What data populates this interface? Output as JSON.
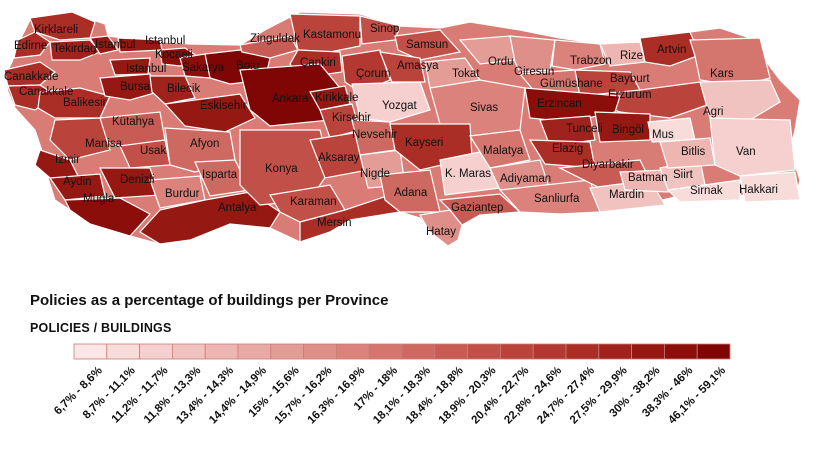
{
  "map": {
    "title": "Policies as a percentage of buildings per Province",
    "legend_title": "POLICIES / BUILDINGS",
    "legend": {
      "classes": [
        {
          "label": "6,7% - 8,6%",
          "color": "#fbe7e6"
        },
        {
          "label": "8,7% - 11,1%",
          "color": "#f8dcda"
        },
        {
          "label": "11,2% - 11,7%",
          "color": "#f5d0ce"
        },
        {
          "label": "11,8% - 13,3%",
          "color": "#f1c3c0"
        },
        {
          "label": "13,4% - 14,3%",
          "color": "#edb6b2"
        },
        {
          "label": "14,4% - 14,9%",
          "color": "#e9a9a4"
        },
        {
          "label": "15% - 15,6%",
          "color": "#e49c96"
        },
        {
          "label": "15,7% - 16,2%",
          "color": "#df8f89"
        },
        {
          "label": "16,3% - 16,9%",
          "color": "#da827b"
        },
        {
          "label": "17% - 18%",
          "color": "#d4756e"
        },
        {
          "label": "18,1% - 18,3%",
          "color": "#ce6961"
        },
        {
          "label": "18,4% - 18,8%",
          "color": "#c85c54"
        },
        {
          "label": "18,9% - 20,3%",
          "color": "#c15048"
        },
        {
          "label": "20,4% - 22,7%",
          "color": "#ba443c"
        },
        {
          "label": "22,8% - 24,6%",
          "color": "#b33831"
        },
        {
          "label": "24,7% - 27,4%",
          "color": "#aa2d26"
        },
        {
          "label": "27,5% - 29,9%",
          "color": "#a0221c"
        },
        {
          "label": "30% - 38,2%",
          "color": "#961813"
        },
        {
          "label": "38,3% - 46%",
          "color": "#8b0e0b"
        },
        {
          "label": "46,1% - 59,1%",
          "color": "#7f0605"
        }
      ]
    },
    "provinces": [
      {
        "name": "Kirklareli",
        "class": 15
      },
      {
        "name": "Edirne",
        "class": 15
      },
      {
        "name": "Tekirdag",
        "class": 16
      },
      {
        "name": "Istanbul",
        "class": 17
      },
      {
        "name": "Istanbul",
        "class": 17
      },
      {
        "name": "Istanbul",
        "class": 17
      },
      {
        "name": "Kocaeli",
        "class": 18
      },
      {
        "name": "Canakkale",
        "class": 15
      },
      {
        "name": "Canakkale",
        "class": 15
      },
      {
        "name": "Balikesir",
        "class": 15
      },
      {
        "name": "Bursa",
        "class": 17
      },
      {
        "name": "Sakarya",
        "class": 18
      },
      {
        "name": "Bilecik",
        "class": 16
      },
      {
        "name": "Bolu",
        "class": 19
      },
      {
        "name": "Zinguldak",
        "class": 11
      },
      {
        "name": "Kastamonu",
        "class": 13
      },
      {
        "name": "Sinop",
        "class": 12
      },
      {
        "name": "Çankiri",
        "class": 15
      },
      {
        "name": "Samsun",
        "class": 12
      },
      {
        "name": "Çorum",
        "class": 14
      },
      {
        "name": "Amasya",
        "class": 13
      },
      {
        "name": "Tokat",
        "class": 6
      },
      {
        "name": "Ordu",
        "class": 6
      },
      {
        "name": "Giresun",
        "class": 7
      },
      {
        "name": "Trabzon",
        "class": 8
      },
      {
        "name": "Rize",
        "class": 4
      },
      {
        "name": "Artvin",
        "class": 15
      },
      {
        "name": "Gümüshane",
        "class": 9
      },
      {
        "name": "Bayburt",
        "class": 13
      },
      {
        "name": "Kars",
        "class": 9
      },
      {
        "name": "Erzurum",
        "class": 13
      },
      {
        "name": "Agri",
        "class": 3
      },
      {
        "name": "Eskisehir",
        "class": 17
      },
      {
        "name": "Ankara",
        "class": 19
      },
      {
        "name": "Kirikkale",
        "class": 17
      },
      {
        "name": "Kirsehir",
        "class": 13
      },
      {
        "name": "Yozgat",
        "class": 2
      },
      {
        "name": "Sivas",
        "class": 8
      },
      {
        "name": "Erzincan",
        "class": 18
      },
      {
        "name": "Tunceli",
        "class": 16
      },
      {
        "name": "Bingöl",
        "class": 17
      },
      {
        "name": "Mus",
        "class": 1
      },
      {
        "name": "Kütahya",
        "class": 11
      },
      {
        "name": "Manisa",
        "class": 13
      },
      {
        "name": "Usak",
        "class": 12
      },
      {
        "name": "Afyon",
        "class": 10
      },
      {
        "name": "Izmir",
        "class": 17
      },
      {
        "name": "Aydin",
        "class": 17
      },
      {
        "name": "Denizli",
        "class": 17
      },
      {
        "name": "Mugla",
        "class": 18
      },
      {
        "name": "Burdur",
        "class": 8
      },
      {
        "name": "Isparta",
        "class": 10
      },
      {
        "name": "Antalya",
        "class": 17
      },
      {
        "name": "Konya",
        "class": 12
      },
      {
        "name": "Aksaray",
        "class": 13
      },
      {
        "name": "Nevsehir",
        "class": 10
      },
      {
        "name": "Nigde",
        "class": 6
      },
      {
        "name": "Kayseri",
        "class": 15
      },
      {
        "name": "Karaman",
        "class": 12
      },
      {
        "name": "Mersin",
        "class": 15
      },
      {
        "name": "Adana",
        "class": 10
      },
      {
        "name": "Hatay",
        "class": 7
      },
      {
        "name": "Gaziantep",
        "class": 11
      },
      {
        "name": "K. Maras",
        "class": 2
      },
      {
        "name": "Malatya",
        "class": 9
      },
      {
        "name": "Adiyaman",
        "class": 7
      },
      {
        "name": "Sanliurfa",
        "class": 8
      },
      {
        "name": "Elazig",
        "class": 15
      },
      {
        "name": "Diyarbakir",
        "class": 11
      },
      {
        "name": "Mardin",
        "class": 3
      },
      {
        "name": "Batman",
        "class": 4
      },
      {
        "name": "Siirt",
        "class": 3
      },
      {
        "name": "Bitlis",
        "class": 4
      },
      {
        "name": "Van",
        "class": 2
      },
      {
        "name": "Sirnak",
        "class": 1
      },
      {
        "name": "Hakkari",
        "class": 1
      }
    ]
  }
}
